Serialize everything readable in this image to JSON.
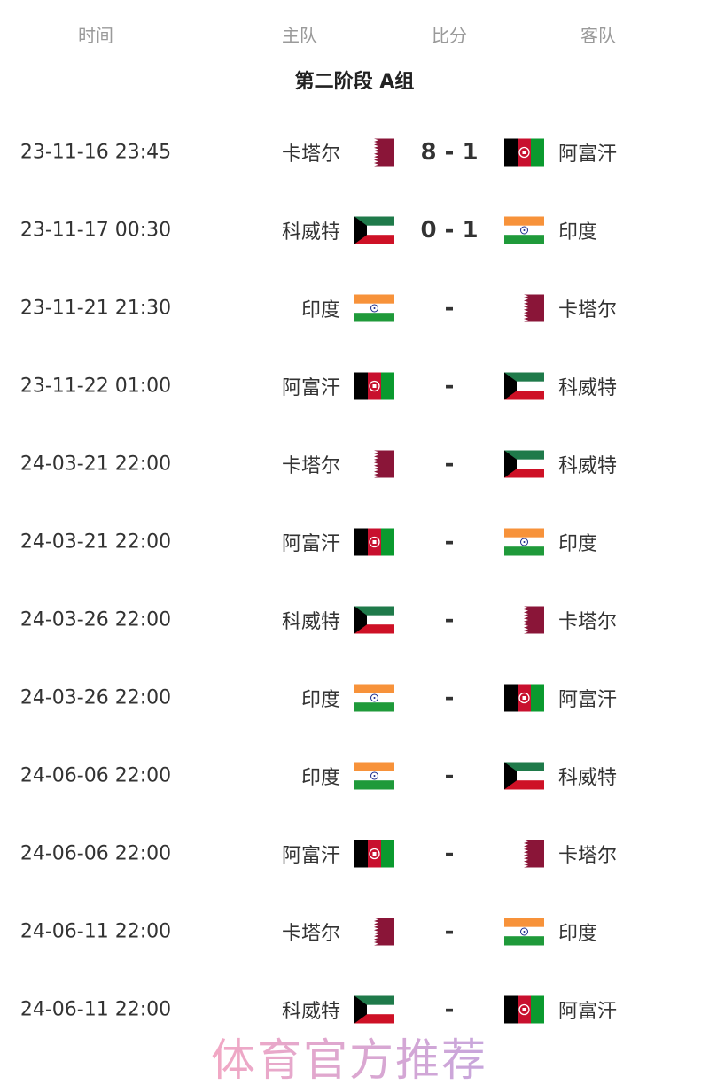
{
  "header": {
    "time": "时间",
    "home": "主队",
    "score": "比分",
    "away": "客队"
  },
  "group_title": "第二阶段 A组",
  "matches": [
    {
      "time": "23-11-16 23:45",
      "home": "卡塔尔",
      "home_flag": "qatar",
      "score": "8 - 1",
      "away": "阿富汗",
      "away_flag": "afghanistan"
    },
    {
      "time": "23-11-17 00:30",
      "home": "科威特",
      "home_flag": "kuwait",
      "score": "0 - 1",
      "away": "印度",
      "away_flag": "india"
    },
    {
      "time": "23-11-21 21:30",
      "home": "印度",
      "home_flag": "india",
      "score": "-",
      "away": "卡塔尔",
      "away_flag": "qatar"
    },
    {
      "time": "23-11-22 01:00",
      "home": "阿富汗",
      "home_flag": "afghanistan",
      "score": "-",
      "away": "科威特",
      "away_flag": "kuwait"
    },
    {
      "time": "24-03-21 22:00",
      "home": "卡塔尔",
      "home_flag": "qatar",
      "score": "-",
      "away": "科威特",
      "away_flag": "kuwait"
    },
    {
      "time": "24-03-21 22:00",
      "home": "阿富汗",
      "home_flag": "afghanistan",
      "score": "-",
      "away": "印度",
      "away_flag": "india"
    },
    {
      "time": "24-03-26 22:00",
      "home": "科威特",
      "home_flag": "kuwait",
      "score": "-",
      "away": "卡塔尔",
      "away_flag": "qatar"
    },
    {
      "time": "24-03-26 22:00",
      "home": "印度",
      "home_flag": "india",
      "score": "-",
      "away": "阿富汗",
      "away_flag": "afghanistan"
    },
    {
      "time": "24-06-06 22:00",
      "home": "印度",
      "home_flag": "india",
      "score": "-",
      "away": "科威特",
      "away_flag": "kuwait"
    },
    {
      "time": "24-06-06 22:00",
      "home": "阿富汗",
      "home_flag": "afghanistan",
      "score": "-",
      "away": "卡塔尔",
      "away_flag": "qatar"
    },
    {
      "time": "24-06-11 22:00",
      "home": "卡塔尔",
      "home_flag": "qatar",
      "score": "-",
      "away": "印度",
      "away_flag": "india"
    },
    {
      "time": "24-06-11 22:00",
      "home": "科威特",
      "home_flag": "kuwait",
      "score": "-",
      "away": "阿富汗",
      "away_flag": "afghanistan"
    }
  ],
  "watermark": "体育官方推荐",
  "colors": {
    "qatar": "#8a1538",
    "kuwait_green": "#1f7a4a",
    "kuwait_red": "#ce1126",
    "india_saffron": "#f7923a",
    "india_green": "#1f9a3a",
    "afghan_red": "#c8102e",
    "afghan_green": "#0a9a2e"
  }
}
